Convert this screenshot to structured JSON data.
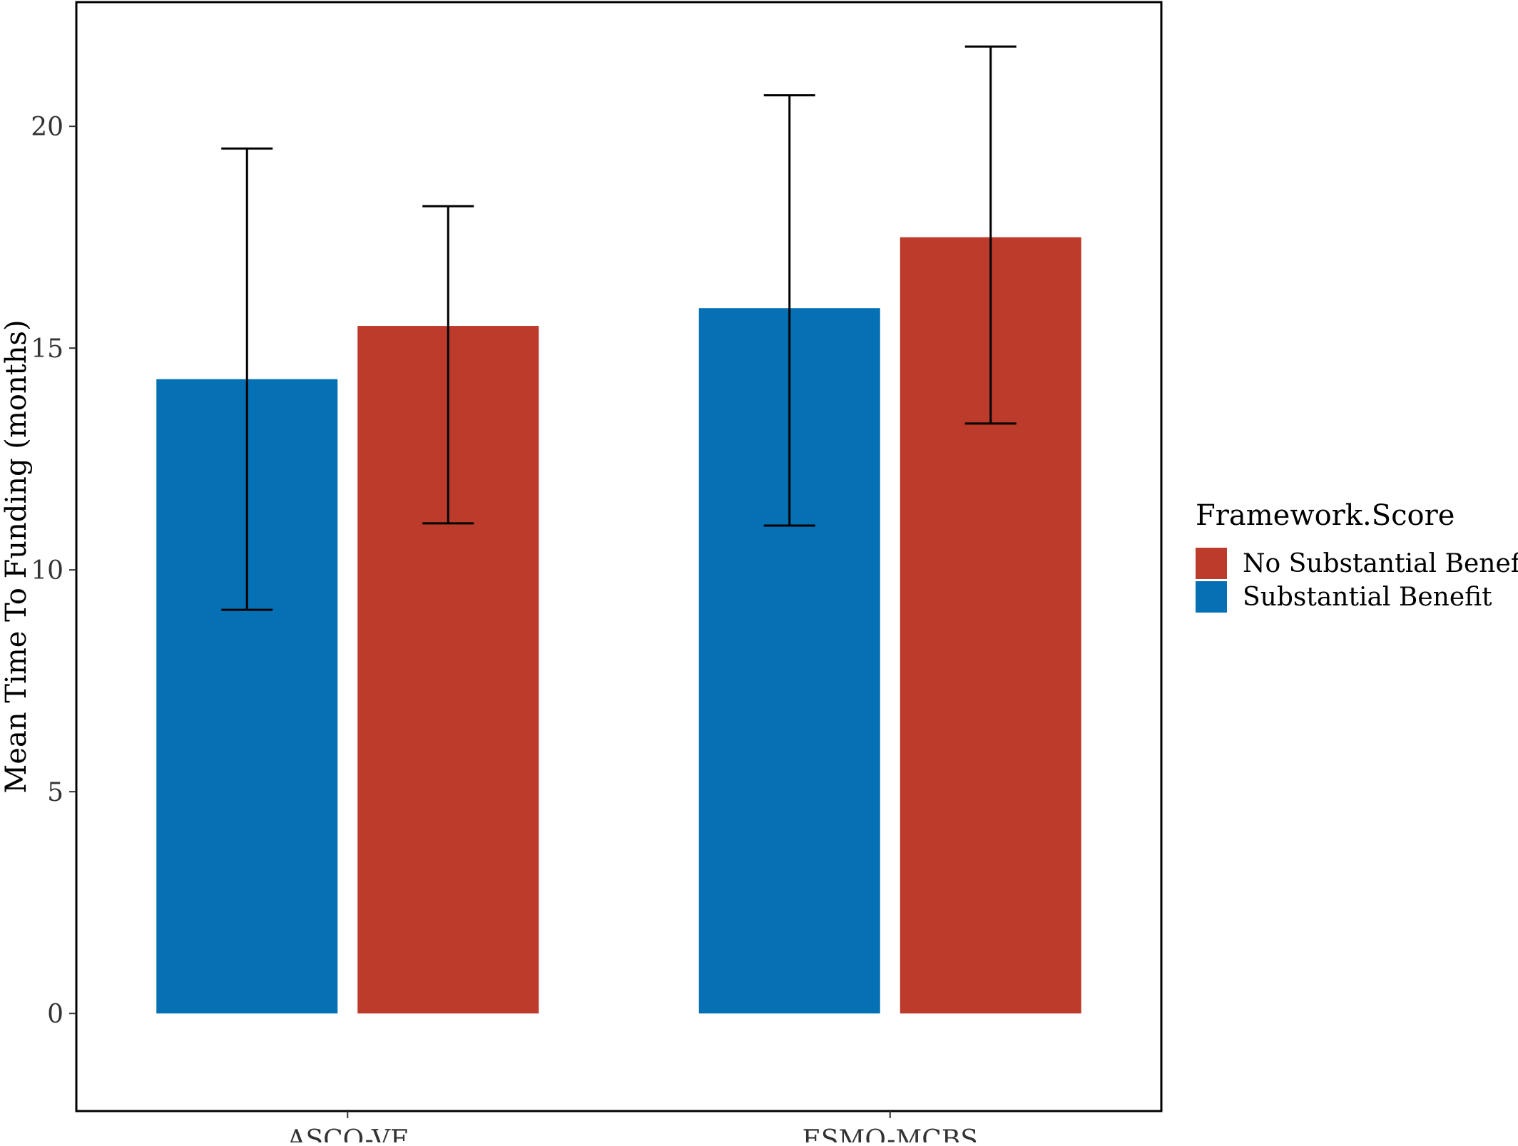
{
  "chart_data": {
    "type": "bar",
    "title": "",
    "xlabel": "",
    "ylabel": "Mean Time To Funding (months)",
    "categories": [
      "ASCO-VF",
      "ESMO-MCBS"
    ],
    "ylim": [
      -2.2,
      22.8
    ],
    "yticks": [
      0,
      5,
      10,
      15,
      20
    ],
    "grid": false,
    "legend": {
      "title": "Framework.Score",
      "position": "right"
    },
    "series": [
      {
        "name": "Substantial Benefit",
        "color": "#0570B4",
        "values": [
          14.3,
          15.9
        ],
        "error_low": [
          9.1,
          11.0
        ],
        "error_high": [
          19.5,
          20.7
        ]
      },
      {
        "name": "No Substantial Benefit",
        "color": "#BC3B2A",
        "values": [
          15.5,
          17.5
        ],
        "error_low": [
          11.05,
          13.3
        ],
        "error_high": [
          18.2,
          21.8
        ]
      }
    ],
    "legend_order": [
      "No Substantial Benefit",
      "Substantial Benefit"
    ]
  }
}
